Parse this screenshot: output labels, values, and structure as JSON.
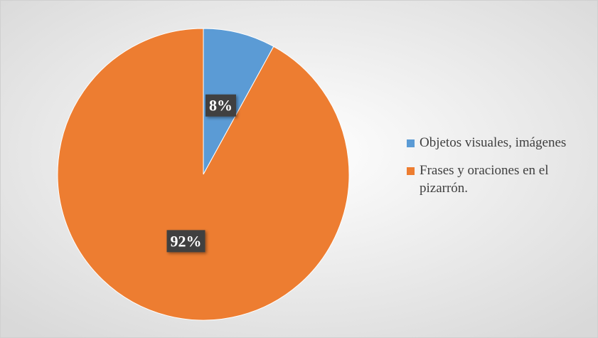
{
  "chart_data": {
    "type": "pie",
    "categories": [
      "Objetos visuales, imágenes",
      "Frases y oraciones en el pizarrón."
    ],
    "values": [
      8,
      92
    ],
    "value_labels": [
      "8%",
      "92%"
    ],
    "colors": [
      "#5b9bd5",
      "#ed7d31"
    ]
  }
}
